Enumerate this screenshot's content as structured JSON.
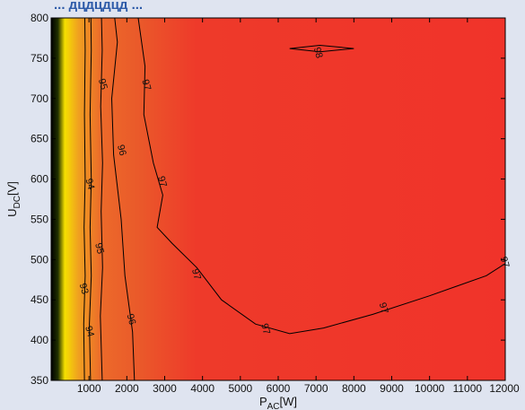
{
  "header": {
    "fragment": "... дцдцдцд ..."
  },
  "chart_data": {
    "type": "heatmap",
    "subtype": "filled-contour",
    "title": "",
    "xlabel": "P",
    "xlabel_sub": "AC",
    "xlabel_unit": "[W]",
    "ylabel": "U",
    "ylabel_sub": "DC",
    "ylabel_unit": "[V]",
    "xlim": [
      0,
      12000
    ],
    "ylim": [
      350,
      800
    ],
    "x_ticks": [
      1000,
      2000,
      3000,
      4000,
      5000,
      6000,
      7000,
      8000,
      9000,
      10000,
      11000,
      12000
    ],
    "y_ticks": [
      350,
      400,
      450,
      500,
      550,
      600,
      650,
      700,
      750,
      800
    ],
    "grid": false,
    "colormap": {
      "low": "#000000",
      "mid": "#f5e000",
      "high": "#ee3128"
    },
    "contours": [
      {
        "level": 93,
        "points": [
          [
            880,
            350
          ],
          [
            860,
            420
          ],
          [
            900,
            480
          ],
          [
            870,
            540
          ],
          [
            900,
            600
          ],
          [
            880,
            680
          ],
          [
            900,
            760
          ],
          [
            890,
            800
          ]
        ]
      },
      {
        "level": 94,
        "points": [
          [
            1040,
            350
          ],
          [
            1010,
            420
          ],
          [
            1060,
            480
          ],
          [
            1030,
            540
          ],
          [
            1060,
            600
          ],
          [
            1030,
            680
          ],
          [
            1060,
            760
          ],
          [
            1050,
            800
          ]
        ]
      },
      {
        "level": 95,
        "points": [
          [
            1350,
            350
          ],
          [
            1300,
            430
          ],
          [
            1360,
            490
          ],
          [
            1320,
            560
          ],
          [
            1360,
            620
          ],
          [
            1310,
            690
          ],
          [
            1350,
            760
          ],
          [
            1330,
            800
          ]
        ]
      },
      {
        "level": 96,
        "points": [
          [
            2200,
            350
          ],
          [
            2150,
            410
          ],
          [
            1950,
            480
          ],
          [
            1850,
            550
          ],
          [
            1650,
            630
          ],
          [
            1600,
            700
          ],
          [
            1750,
            770
          ],
          [
            1680,
            800
          ]
        ]
      },
      {
        "level": 97,
        "points": [
          [
            2300,
            800
          ],
          [
            2480,
            740
          ],
          [
            2450,
            680
          ],
          [
            2700,
            620
          ],
          [
            2950,
            580
          ],
          [
            2800,
            540
          ],
          [
            3200,
            520
          ],
          [
            3850,
            490
          ],
          [
            4500,
            450
          ],
          [
            5400,
            420
          ],
          [
            6300,
            408
          ],
          [
            7200,
            415
          ],
          [
            8500,
            432
          ],
          [
            10000,
            455
          ],
          [
            11500,
            480
          ],
          [
            12000,
            495
          ]
        ]
      },
      {
        "level": 98,
        "points": [
          [
            6300,
            762
          ],
          [
            7100,
            766
          ],
          [
            8000,
            762
          ],
          [
            7100,
            758
          ],
          [
            6300,
            762
          ]
        ]
      }
    ],
    "contour_labels": [
      {
        "text": "93",
        "x": 880,
        "y": 464
      },
      {
        "text": "94",
        "x": 1040,
        "y": 594
      },
      {
        "text": "94",
        "x": 1030,
        "y": 411
      },
      {
        "text": "95",
        "x": 1290,
        "y": 514
      },
      {
        "text": "95",
        "x": 1380,
        "y": 718
      },
      {
        "text": "96",
        "x": 2130,
        "y": 426
      },
      {
        "text": "96",
        "x": 1880,
        "y": 636
      },
      {
        "text": "97",
        "x": 2530,
        "y": 717
      },
      {
        "text": "97",
        "x": 2950,
        "y": 597
      },
      {
        "text": "97",
        "x": 3850,
        "y": 482
      },
      {
        "text": "97",
        "x": 5680,
        "y": 414
      },
      {
        "text": "97",
        "x": 8800,
        "y": 440
      },
      {
        "text": "97",
        "x": 12000,
        "y": 497
      },
      {
        "text": "98",
        "x": 7070,
        "y": 757
      }
    ]
  }
}
